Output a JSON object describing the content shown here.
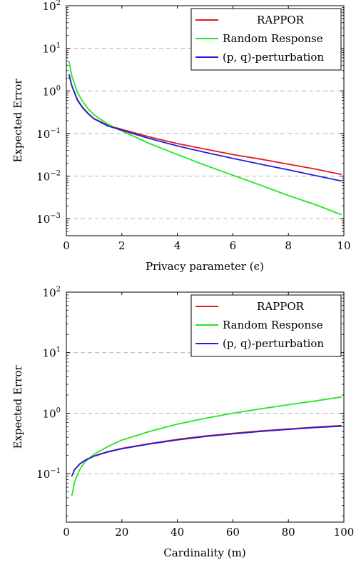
{
  "chart_data": [
    {
      "type": "line",
      "xlabel": "Privacy parameter (ϵ)",
      "ylabel": "Expected Error",
      "xscale": "linear",
      "yscale": "log",
      "xlim": [
        0,
        10
      ],
      "ylim_exp": [
        -3.4,
        2
      ],
      "xticks": [
        0,
        2,
        4,
        6,
        8,
        10
      ],
      "xtick_labels": [
        "0",
        "2",
        "4",
        "6",
        "8",
        "10"
      ],
      "yticks_exp": [
        -3,
        -2,
        -1,
        0,
        1,
        2
      ],
      "ytick_base": "10",
      "ytick_exps": [
        "−3",
        "−2",
        "−1",
        "0",
        "1",
        "2"
      ],
      "grid": "horizontal-dashed",
      "legend_position": "top-right",
      "series": [
        {
          "name": "RAPPOR",
          "color": "#e41a1c",
          "x": [
            0.1,
            0.2,
            0.4,
            0.6,
            0.8,
            1.0,
            1.5,
            2,
            3,
            4,
            5,
            6,
            7,
            8,
            9,
            9.9
          ],
          "y": [
            2.3,
            1.3,
            0.62,
            0.4,
            0.29,
            0.225,
            0.155,
            0.125,
            0.083,
            0.058,
            0.043,
            0.032,
            0.025,
            0.019,
            0.0145,
            0.011
          ]
        },
        {
          "name": "Random Response",
          "color": "#22e622",
          "x": [
            0.1,
            0.2,
            0.4,
            0.6,
            0.8,
            1.0,
            1.5,
            2,
            3,
            4,
            5,
            6,
            7,
            8,
            9,
            9.9
          ],
          "y": [
            4.8,
            2.2,
            0.92,
            0.55,
            0.37,
            0.275,
            0.165,
            0.115,
            0.058,
            0.032,
            0.018,
            0.0105,
            0.0061,
            0.0035,
            0.0021,
            0.00125
          ]
        },
        {
          "name": "(p, q)-perturbation",
          "color": "#1f1fdd",
          "x": [
            0.1,
            0.2,
            0.4,
            0.6,
            0.8,
            1.0,
            1.5,
            2,
            3,
            4,
            5,
            6,
            7,
            8,
            9,
            9.9
          ],
          "y": [
            2.4,
            1.3,
            0.6,
            0.39,
            0.285,
            0.22,
            0.15,
            0.12,
            0.076,
            0.051,
            0.036,
            0.026,
            0.019,
            0.014,
            0.0102,
            0.0077
          ]
        }
      ]
    },
    {
      "type": "line",
      "xlabel": "Cardinality (m)",
      "ylabel": "Expected Error",
      "xscale": "linear",
      "yscale": "log",
      "xlim": [
        0,
        100
      ],
      "ylim_exp": [
        -1.8,
        2
      ],
      "xticks": [
        0,
        20,
        40,
        60,
        80,
        100
      ],
      "xtick_labels": [
        "0",
        "20",
        "40",
        "60",
        "80",
        "100"
      ],
      "yticks_exp": [
        -1,
        0,
        1,
        2
      ],
      "ytick_base": "10",
      "ytick_exps": [
        "−1",
        "0",
        "1",
        "2"
      ],
      "grid": "horizontal-dashed",
      "legend_position": "top-right",
      "series": [
        {
          "name": "RAPPOR",
          "color": "#e41a1c",
          "x": [
            2,
            3,
            5,
            7,
            10,
            15,
            20,
            30,
            40,
            50,
            60,
            70,
            80,
            90,
            99
          ],
          "y": [
            0.092,
            0.118,
            0.148,
            0.17,
            0.197,
            0.232,
            0.262,
            0.315,
            0.37,
            0.42,
            0.465,
            0.51,
            0.55,
            0.59,
            0.625
          ]
        },
        {
          "name": "Random Response",
          "color": "#22e622",
          "x": [
            2,
            3,
            5,
            7,
            10,
            15,
            20,
            30,
            40,
            50,
            60,
            70,
            80,
            90,
            99
          ],
          "y": [
            0.044,
            0.075,
            0.122,
            0.162,
            0.21,
            0.282,
            0.36,
            0.5,
            0.66,
            0.82,
            1.0,
            1.18,
            1.38,
            1.6,
            1.85
          ]
        },
        {
          "name": "(p, q)-perturbation",
          "color": "#1f1fdd",
          "x": [
            2,
            3,
            5,
            7,
            10,
            15,
            20,
            30,
            40,
            50,
            60,
            70,
            80,
            90,
            99
          ],
          "y": [
            0.092,
            0.117,
            0.147,
            0.168,
            0.195,
            0.229,
            0.258,
            0.31,
            0.362,
            0.412,
            0.456,
            0.5,
            0.54,
            0.58,
            0.61
          ]
        }
      ]
    }
  ]
}
